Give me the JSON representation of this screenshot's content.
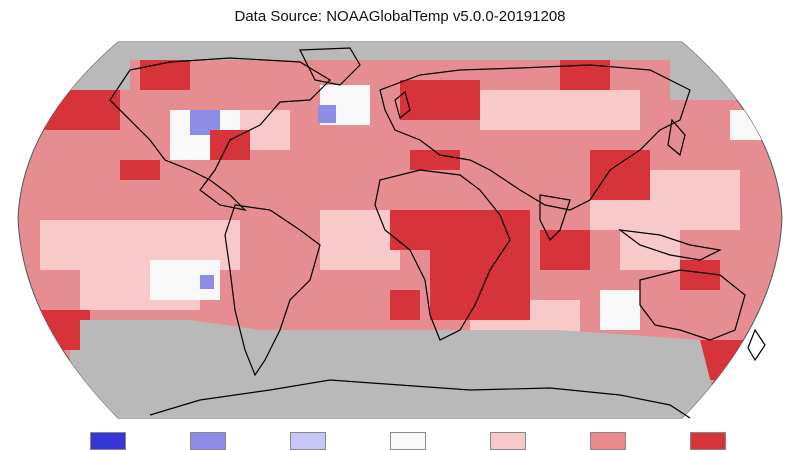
{
  "subtitle": "Data Source: NOAAGlobalTemp v5.0.0-20191208",
  "colors": {
    "ocean_ring": "#b9b9b9",
    "no_data": "#b9b9b9",
    "coastline": "#000000",
    "much_warmer": "#d6343a",
    "warmer": "#ea8a8d",
    "slightly_warmer": "#f8c9c9",
    "near_average": "#f8f8f8",
    "slightly_cooler": "#c8c8f6",
    "cooler": "#8c8ce6",
    "much_cooler": "#3636d6"
  },
  "legend": {
    "categories": [
      {
        "key": "much-cooler",
        "color": "#3636d6"
      },
      {
        "key": "cooler",
        "color": "#8c8ce6"
      },
      {
        "key": "slightly-cooler",
        "color": "#c8c8f6"
      },
      {
        "key": "near-average",
        "color": "#f8f8f8"
      },
      {
        "key": "slightly-warmer",
        "color": "#f8c9c9"
      },
      {
        "key": "warmer",
        "color": "#ea8a8d"
      },
      {
        "key": "much-warmer",
        "color": "#d6343a"
      }
    ]
  }
}
